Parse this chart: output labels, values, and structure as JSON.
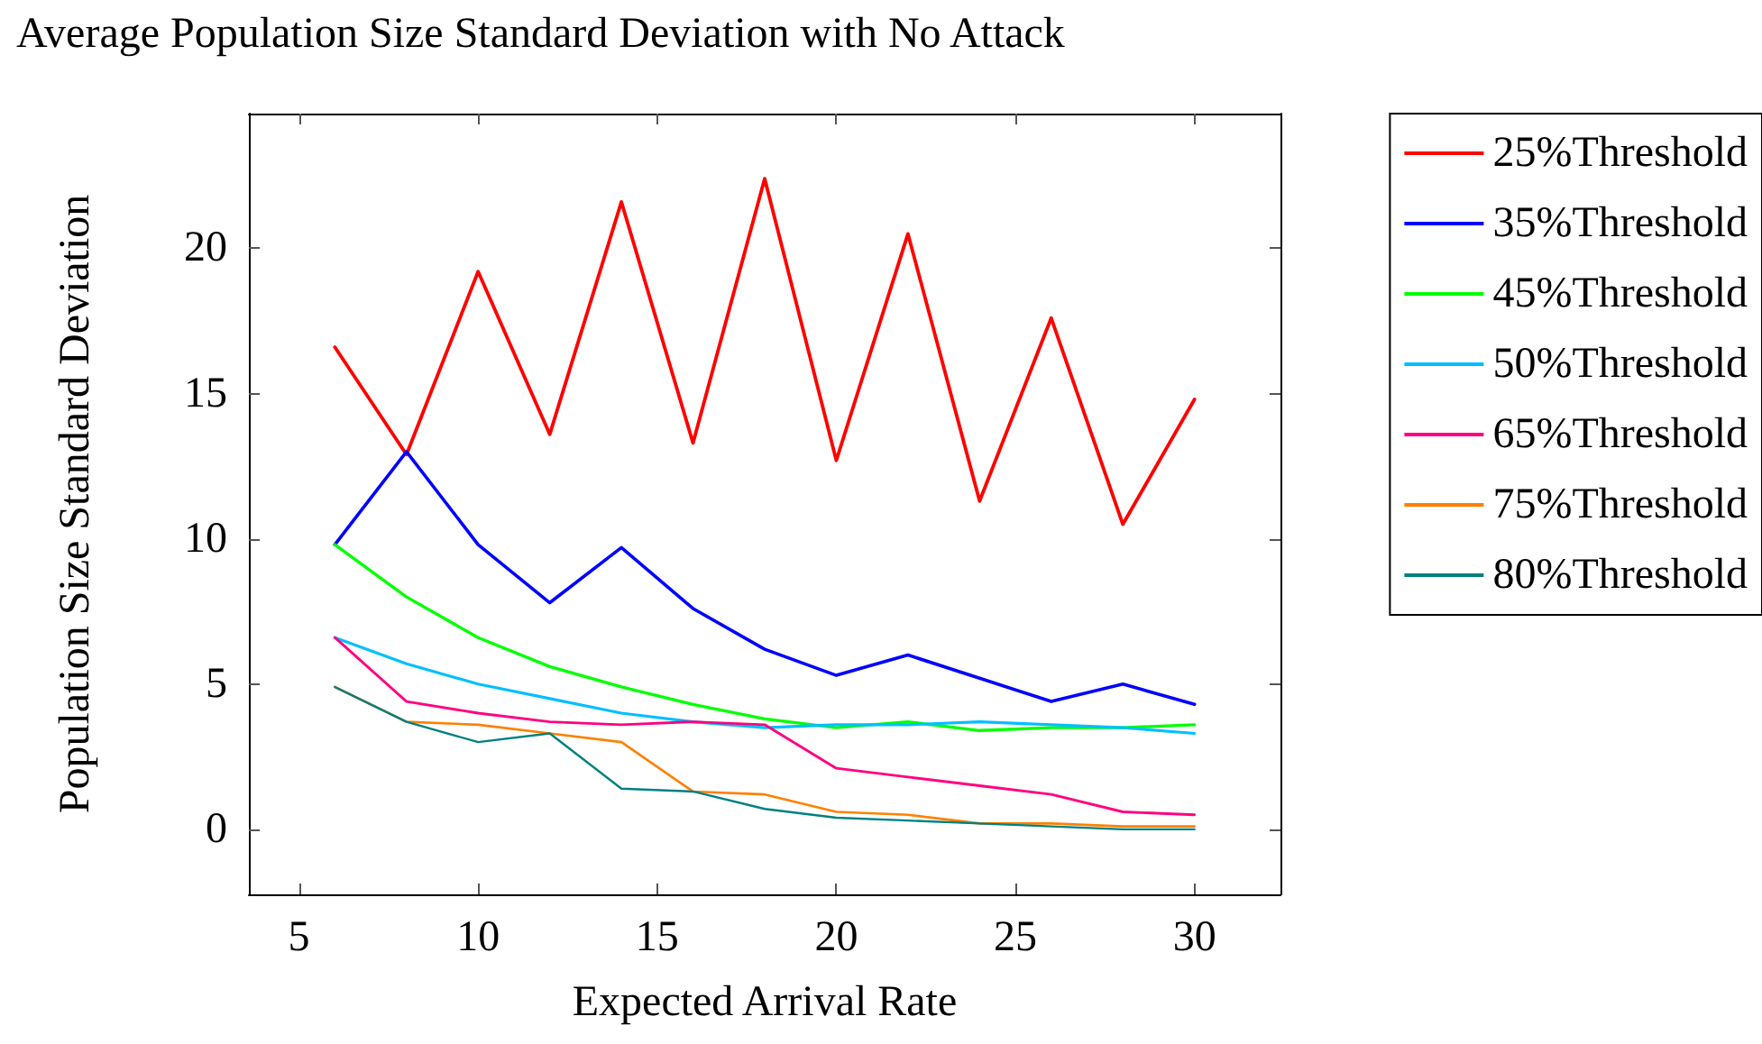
{
  "chart_data": {
    "type": "line",
    "title": "Average Population Size Standard Deviation with No Attack",
    "xlabel": "Expected Arrival Rate",
    "ylabel": "Population Size Standard Deviation",
    "x": [
      6,
      8,
      10,
      12,
      14,
      16,
      18,
      20,
      22,
      24,
      26,
      28,
      30
    ],
    "series": [
      {
        "name": "25%Threshold",
        "color": "#ff0000",
        "values": [
          16.6,
          12.9,
          19.2,
          13.6,
          21.6,
          13.3,
          22.4,
          12.7,
          20.5,
          11.3,
          17.6,
          10.5,
          14.8
        ]
      },
      {
        "name": "35%Threshold",
        "color": "#0000ff",
        "values": [
          9.8,
          13.0,
          9.8,
          7.8,
          9.7,
          7.6,
          6.2,
          5.3,
          6.0,
          5.2,
          4.4,
          5.0,
          4.3
        ]
      },
      {
        "name": "45%Threshold",
        "color": "#00ff00",
        "values": [
          9.8,
          8.0,
          6.6,
          5.6,
          4.9,
          4.3,
          3.8,
          3.5,
          3.7,
          3.4,
          3.5,
          3.5,
          3.6
        ]
      },
      {
        "name": "50%Threshold",
        "color": "#00bfff",
        "values": [
          6.6,
          5.7,
          5.0,
          4.5,
          4.0,
          3.7,
          3.5,
          3.6,
          3.6,
          3.7,
          3.6,
          3.5,
          3.3
        ]
      },
      {
        "name": "65%Threshold",
        "color": "#ff0080",
        "values": [
          6.6,
          4.4,
          4.0,
          3.7,
          3.6,
          3.7,
          3.6,
          2.1,
          1.8,
          1.5,
          1.2,
          0.6,
          0.5
        ]
      },
      {
        "name": "75%Threshold",
        "color": "#ff8000",
        "values": [
          4.9,
          3.7,
          3.6,
          3.3,
          3.0,
          1.3,
          1.2,
          0.6,
          0.5,
          0.2,
          0.2,
          0.1,
          0.1
        ]
      },
      {
        "name": "80%Threshold",
        "color": "#008080",
        "values": [
          4.9,
          3.7,
          3.0,
          3.3,
          1.4,
          1.3,
          0.7,
          0.4,
          0.3,
          0.2,
          0.1,
          0.0,
          0.0
        ]
      }
    ],
    "xlim": [
      3.6,
      32.4
    ],
    "xticks": [
      5,
      10,
      15,
      20,
      25,
      30
    ],
    "ylim": [
      -2.24,
      24.64
    ],
    "yticks": [
      0,
      5,
      10,
      15,
      20
    ],
    "grid": false,
    "legend": "top right",
    "marker": "none",
    "line_style": "solid"
  }
}
